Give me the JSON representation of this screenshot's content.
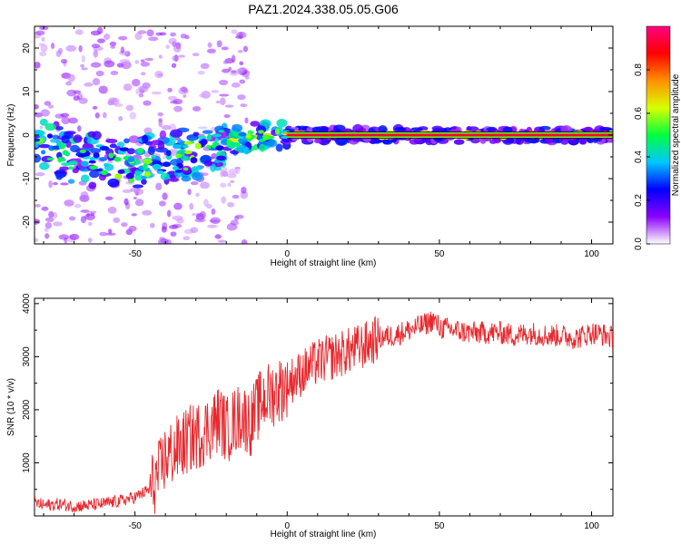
{
  "title": "PAZ1.2024.338.05.05.G06",
  "chart_data": [
    {
      "type": "heatmap",
      "xlabel": "Height of straight line (km)",
      "ylabel": "Frequency (Hz)",
      "xlim": [
        -83,
        107
      ],
      "ylim": [
        -25,
        25
      ],
      "xticks": [
        -50,
        0,
        50,
        100
      ],
      "yticks": [
        -20,
        -10,
        0,
        10,
        20
      ],
      "colorbar": {
        "label": "Normalized spectral amplitude",
        "range": [
          0,
          1
        ],
        "ticks": [
          "0.0",
          "0.2",
          "0.4",
          "0.6",
          "0.8"
        ],
        "colormap": [
          "#ffffff",
          "#8a00ff",
          "#0000ff",
          "#00c8ff",
          "#00ff40",
          "#d8ff00",
          "#ff9000",
          "#ff0000",
          "#ff0080"
        ]
      },
      "ridge": [
        {
          "x": -82,
          "y": -2
        },
        {
          "x": -70,
          "y": -5
        },
        {
          "x": -50,
          "y": -7
        },
        {
          "x": -40,
          "y": -5
        },
        {
          "x": -30,
          "y": -4
        },
        {
          "x": -20,
          "y": -2
        },
        {
          "x": -10,
          "y": 0
        },
        {
          "x": 0,
          "y": 0
        },
        {
          "x": 107,
          "y": 0
        }
      ]
    },
    {
      "type": "line",
      "xlabel": "Height of straight line (km)",
      "ylabel": "SNR (10 * v/v)",
      "xlim": [
        -83,
        107
      ],
      "ylim": [
        0,
        4100
      ],
      "xticks": [
        -50,
        0,
        50,
        100
      ],
      "yticks": [
        1000,
        2000,
        3000,
        4000
      ],
      "series": [
        {
          "color": "#e8282d",
          "x": [
            -83,
            -80,
            -75,
            -70,
            -65,
            -60,
            -55,
            -50,
            -45,
            -42,
            -40,
            -35,
            -32,
            -30,
            -28,
            -25,
            -22,
            -20,
            -18,
            -15,
            -12,
            -10,
            -8,
            -5,
            -2,
            0,
            5,
            10,
            15,
            20,
            25,
            30,
            35,
            40,
            45,
            48,
            50,
            55,
            60,
            65,
            70,
            75,
            80,
            85,
            90,
            95,
            100,
            105,
            107
          ],
          "y": [
            250,
            200,
            220,
            180,
            200,
            230,
            280,
            350,
            500,
            800,
            1100,
            1300,
            1450,
            1500,
            1550,
            1700,
            1850,
            1600,
            1750,
            1900,
            1750,
            2000,
            2200,
            2300,
            2400,
            2500,
            2700,
            2900,
            3000,
            3100,
            3200,
            3350,
            3400,
            3500,
            3600,
            3700,
            3550,
            3500,
            3450,
            3450,
            3450,
            3400,
            3450,
            3400,
            3400,
            3350,
            3450,
            3400,
            3350
          ]
        }
      ]
    }
  ]
}
